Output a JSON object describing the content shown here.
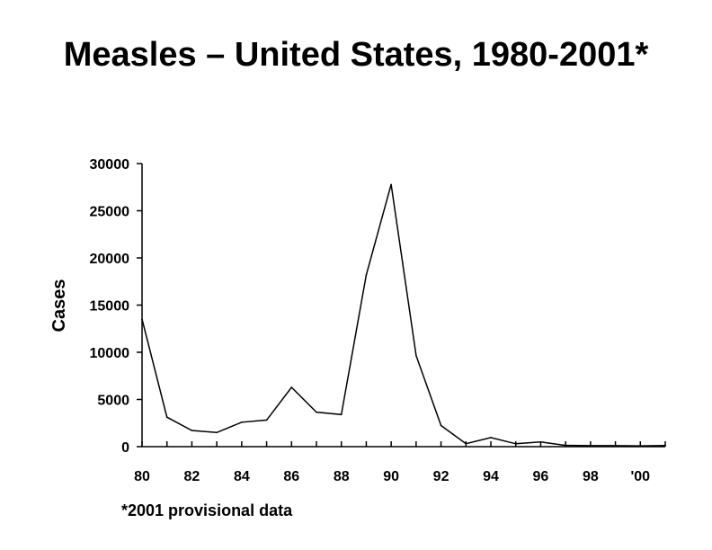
{
  "chart_data": {
    "type": "line",
    "title": "Measles – United States, 1980-2001*",
    "xlabel": "",
    "ylabel": "Cases",
    "footnote": "*2001 provisional data",
    "x": [
      1980,
      1981,
      1982,
      1983,
      1984,
      1985,
      1986,
      1987,
      1988,
      1989,
      1990,
      1991,
      1992,
      1993,
      1994,
      1995,
      1996,
      1997,
      1998,
      1999,
      2000,
      2001
    ],
    "x_tick_values": [
      1980,
      1982,
      1984,
      1986,
      1988,
      1990,
      1992,
      1994,
      1996,
      1998,
      2000
    ],
    "x_tick_labels": [
      "80",
      "82",
      "84",
      "86",
      "88",
      "90",
      "92",
      "94",
      "96",
      "98",
      "'00"
    ],
    "xlim": [
      1980,
      2001
    ],
    "ylim": [
      0,
      30000
    ],
    "y_ticks": [
      0,
      5000,
      10000,
      15000,
      20000,
      25000,
      30000
    ],
    "series": [
      {
        "values": [
          13506,
          3124,
          1714,
          1497,
          2587,
          2822,
          6282,
          3655,
          3396,
          18193,
          27786,
          9643,
          2237,
          312,
          963,
          309,
          508,
          138,
          100,
          100,
          86,
          116
        ]
      }
    ],
    "grid": false,
    "legend": "none",
    "line_color": "#000000"
  }
}
